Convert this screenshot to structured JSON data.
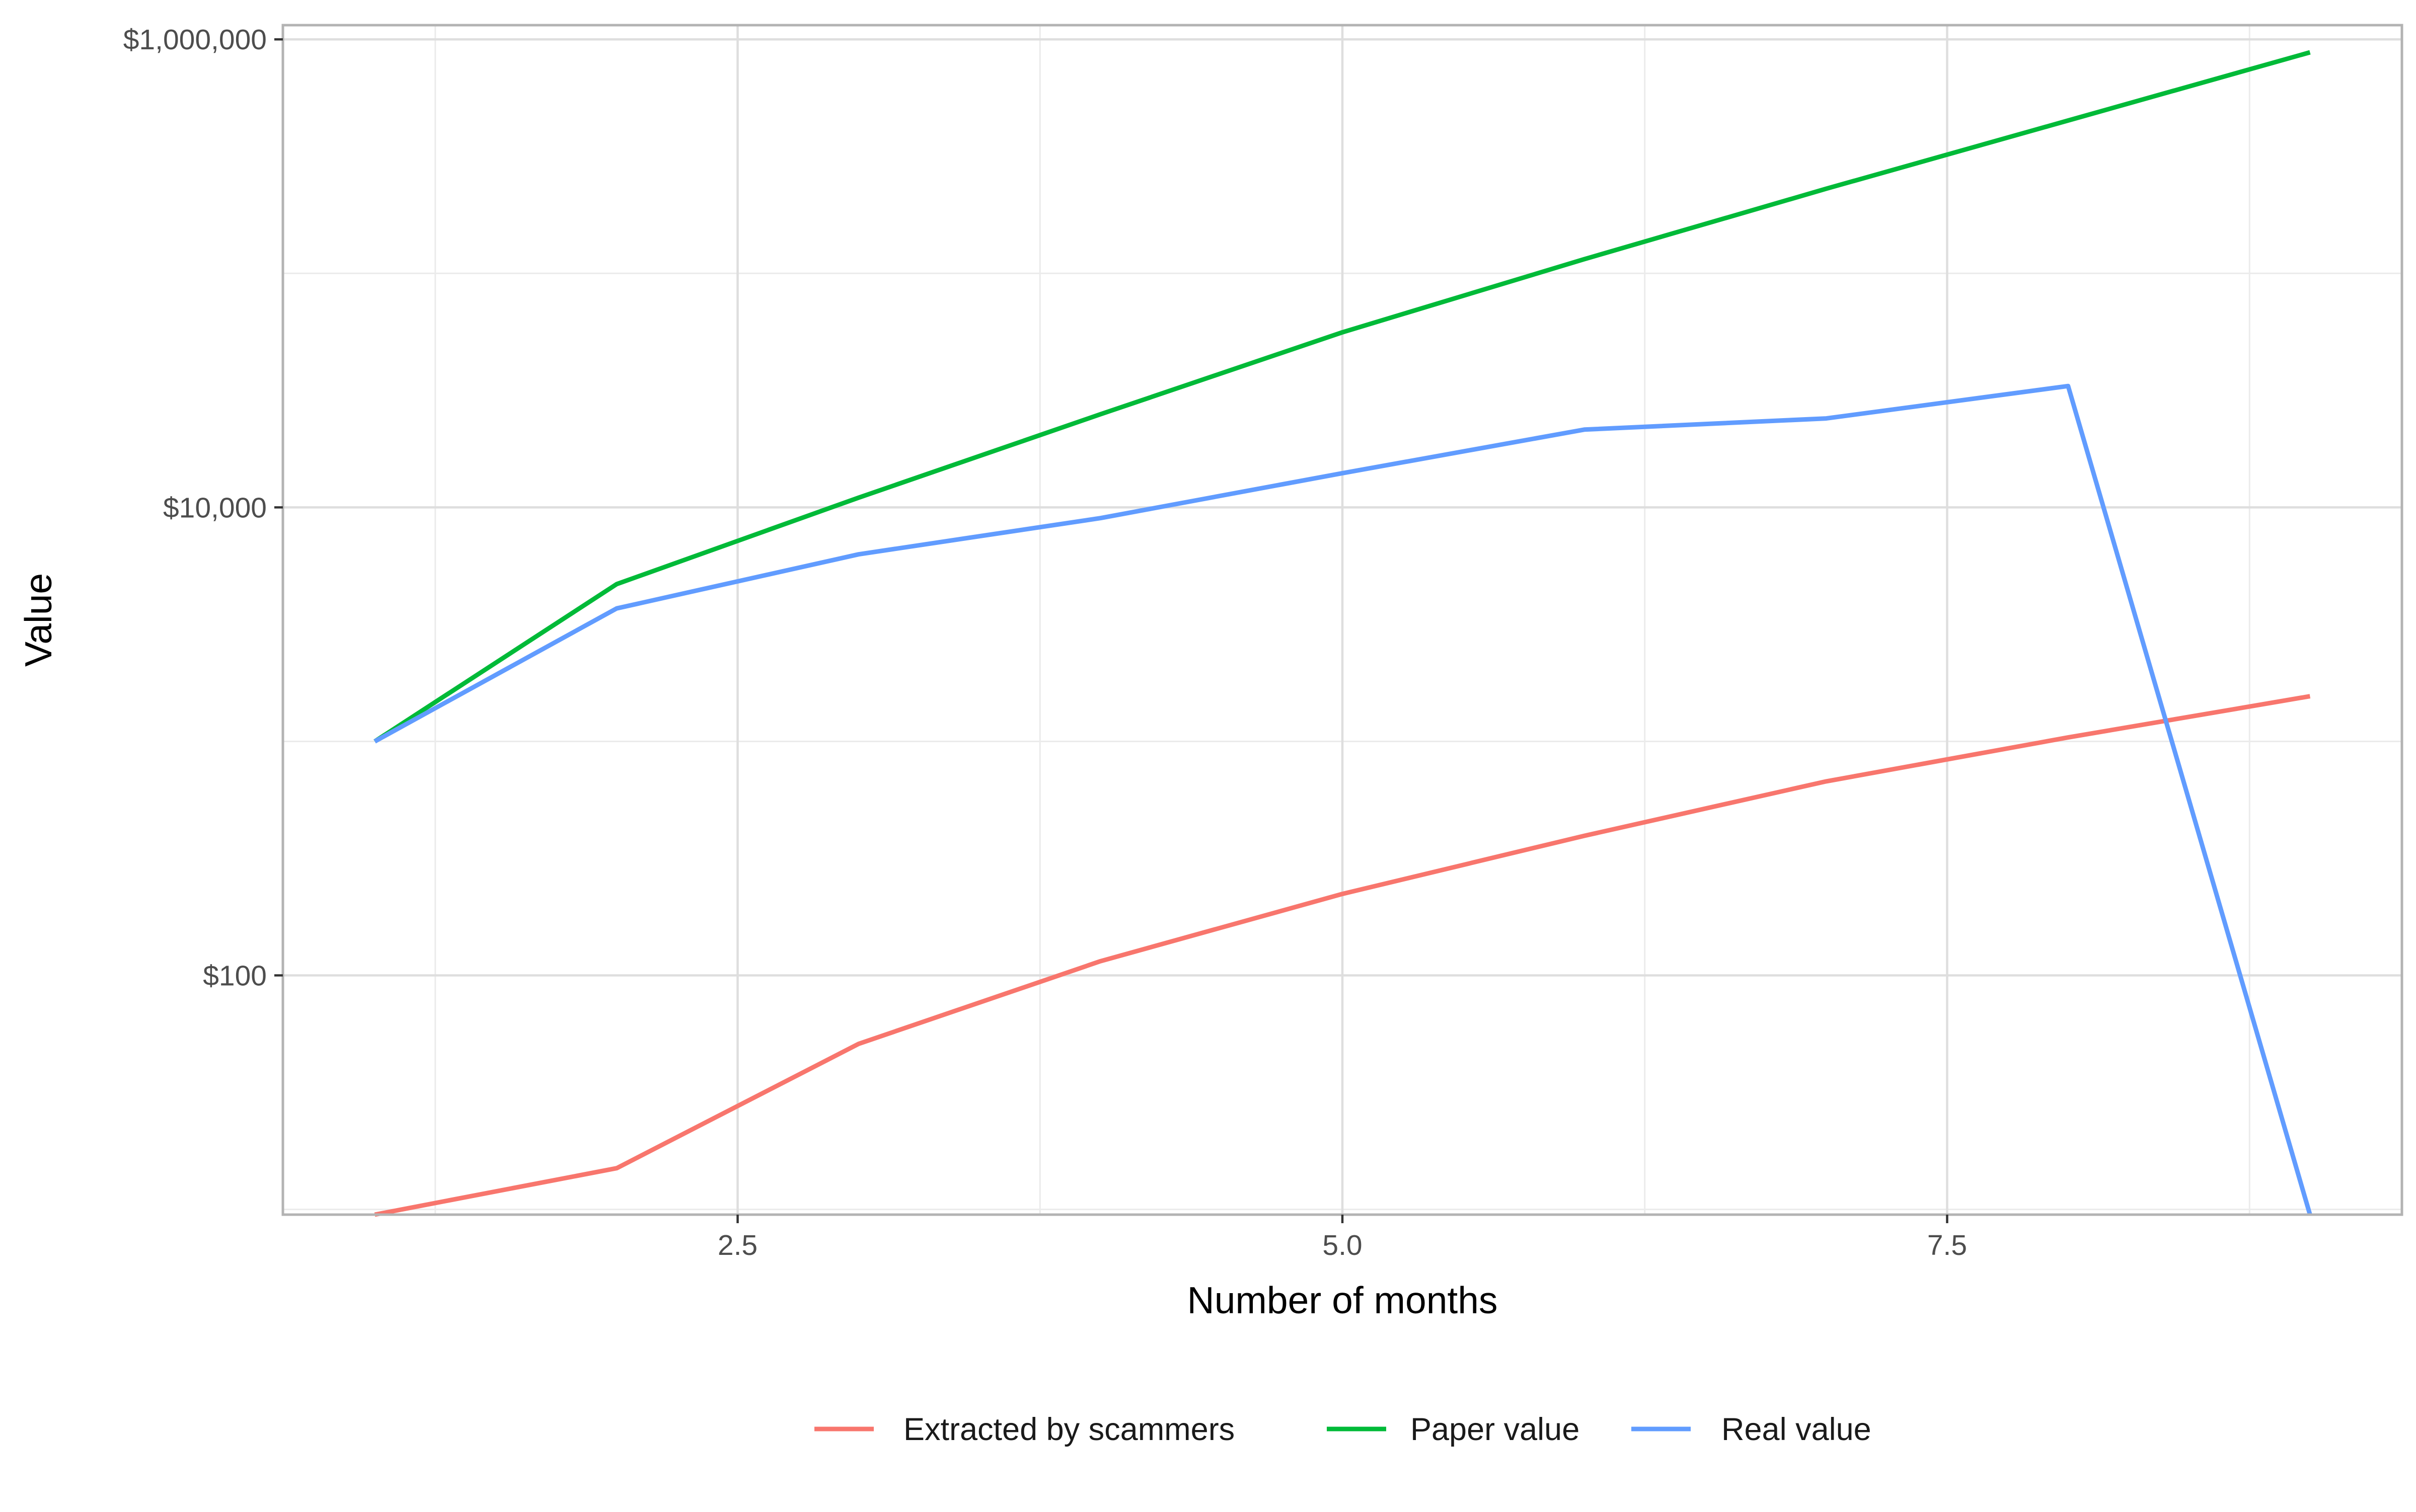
{
  "chart_data": {
    "type": "line",
    "title": "",
    "xlabel": "Number of months",
    "ylabel": "Value",
    "xlim": [
      0.62,
      9.38
    ],
    "ylim": [
      9.5,
      1150000
    ],
    "y_scale": "log",
    "grid": true,
    "legend_position": "bottom",
    "x_ticks": [
      {
        "value": 2.5,
        "label": "2.5"
      },
      {
        "value": 5.0,
        "label": "5.0"
      },
      {
        "value": 7.5,
        "label": "7.5"
      }
    ],
    "x_minor_ticks": [
      1.25,
      3.75,
      6.25,
      8.75
    ],
    "y_ticks": [
      {
        "value": 100,
        "label": "$100"
      },
      {
        "value": 10000,
        "label": "$10,000"
      },
      {
        "value": 1000000,
        "label": "$1,000,000"
      }
    ],
    "y_minor_ticks": [
      10,
      1000,
      100000
    ],
    "series": [
      {
        "name": "Extracted by scammers",
        "color": "#F8766D",
        "x": [
          1,
          2,
          3,
          4,
          5,
          6,
          7,
          8,
          9
        ],
        "values": [
          9.5,
          15,
          51,
          115,
          223,
          395,
          675,
          1040,
          1560
        ]
      },
      {
        "name": "Paper value",
        "color": "#00BA38",
        "x": [
          1,
          2,
          3,
          4,
          5,
          6,
          7,
          8,
          9
        ],
        "values": [
          1000,
          4700,
          11000,
          25000,
          56000,
          115000,
          230000,
          450000,
          880000
        ]
      },
      {
        "name": "Real value",
        "color": "#619CFF",
        "x": [
          1,
          2,
          3,
          4,
          5,
          6,
          7,
          8,
          9
        ],
        "values": [
          1000,
          3700,
          6300,
          9000,
          14000,
          21500,
          24000,
          33000,
          9.5
        ]
      }
    ]
  }
}
